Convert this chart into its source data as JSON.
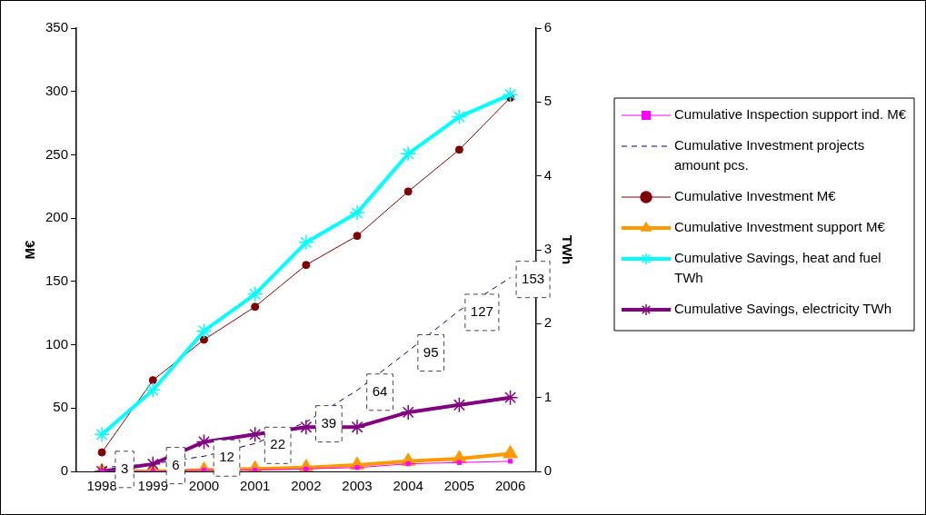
{
  "chart_data": {
    "type": "line",
    "ylabel": "M€",
    "y2label": "TWh",
    "categories": [
      "1998",
      "1999",
      "2000",
      "2001",
      "2002",
      "2003",
      "2004",
      "2005",
      "2006"
    ],
    "ylim": [
      0,
      350
    ],
    "yticks": [
      0,
      50,
      100,
      150,
      200,
      250,
      300,
      350
    ],
    "y2lim": [
      0,
      6
    ],
    "y2ticks": [
      0,
      1,
      2,
      3,
      4,
      5,
      6
    ],
    "grid": false,
    "legend": "right",
    "series": [
      {
        "name": "Cumulative Inspection support ind. M€",
        "color": "#ff00ff",
        "marker": "square",
        "line_style": "solid",
        "values": [
          0,
          0,
          1,
          1,
          2,
          3,
          6,
          7,
          8
        ]
      },
      {
        "name": "Cumulative Investment projects amount pcs.",
        "color": "#000080",
        "marker": "none",
        "line_style": "dashed",
        "values": [
          3,
          6,
          12,
          22,
          39,
          64,
          95,
          127,
          153
        ],
        "value_labels": [
          "3",
          "6",
          "12",
          "22",
          "39",
          "64",
          "95",
          "127",
          "153"
        ]
      },
      {
        "name": "Cumulative Investment M€",
        "color": "#800000",
        "marker": "circle",
        "line_style": "solid",
        "values": [
          15,
          72,
          104,
          130,
          163,
          186,
          221,
          254,
          295
        ]
      },
      {
        "name": "Cumulative Investment support M€",
        "color": "#ff9900",
        "marker": "triangle",
        "line_style": "solid",
        "values": [
          0,
          0,
          1,
          2,
          3,
          5,
          8,
          10,
          14
        ]
      },
      {
        "name": "Cumulative Savings, heat and fuel TWh",
        "color": "#00ffff",
        "marker": "cross",
        "line_style": "solid",
        "axis": "y2",
        "values": [
          0.5,
          1.1,
          1.9,
          2.4,
          3.1,
          3.5,
          4.3,
          4.8,
          5.1
        ]
      },
      {
        "name": "Cumulative Savings, electricity TWh",
        "color": "#800080",
        "marker": "cross",
        "line_style": "solid",
        "axis": "y2",
        "values": [
          0,
          0.1,
          0.4,
          0.5,
          0.6,
          0.6,
          0.8,
          0.9,
          1.0
        ]
      }
    ]
  }
}
